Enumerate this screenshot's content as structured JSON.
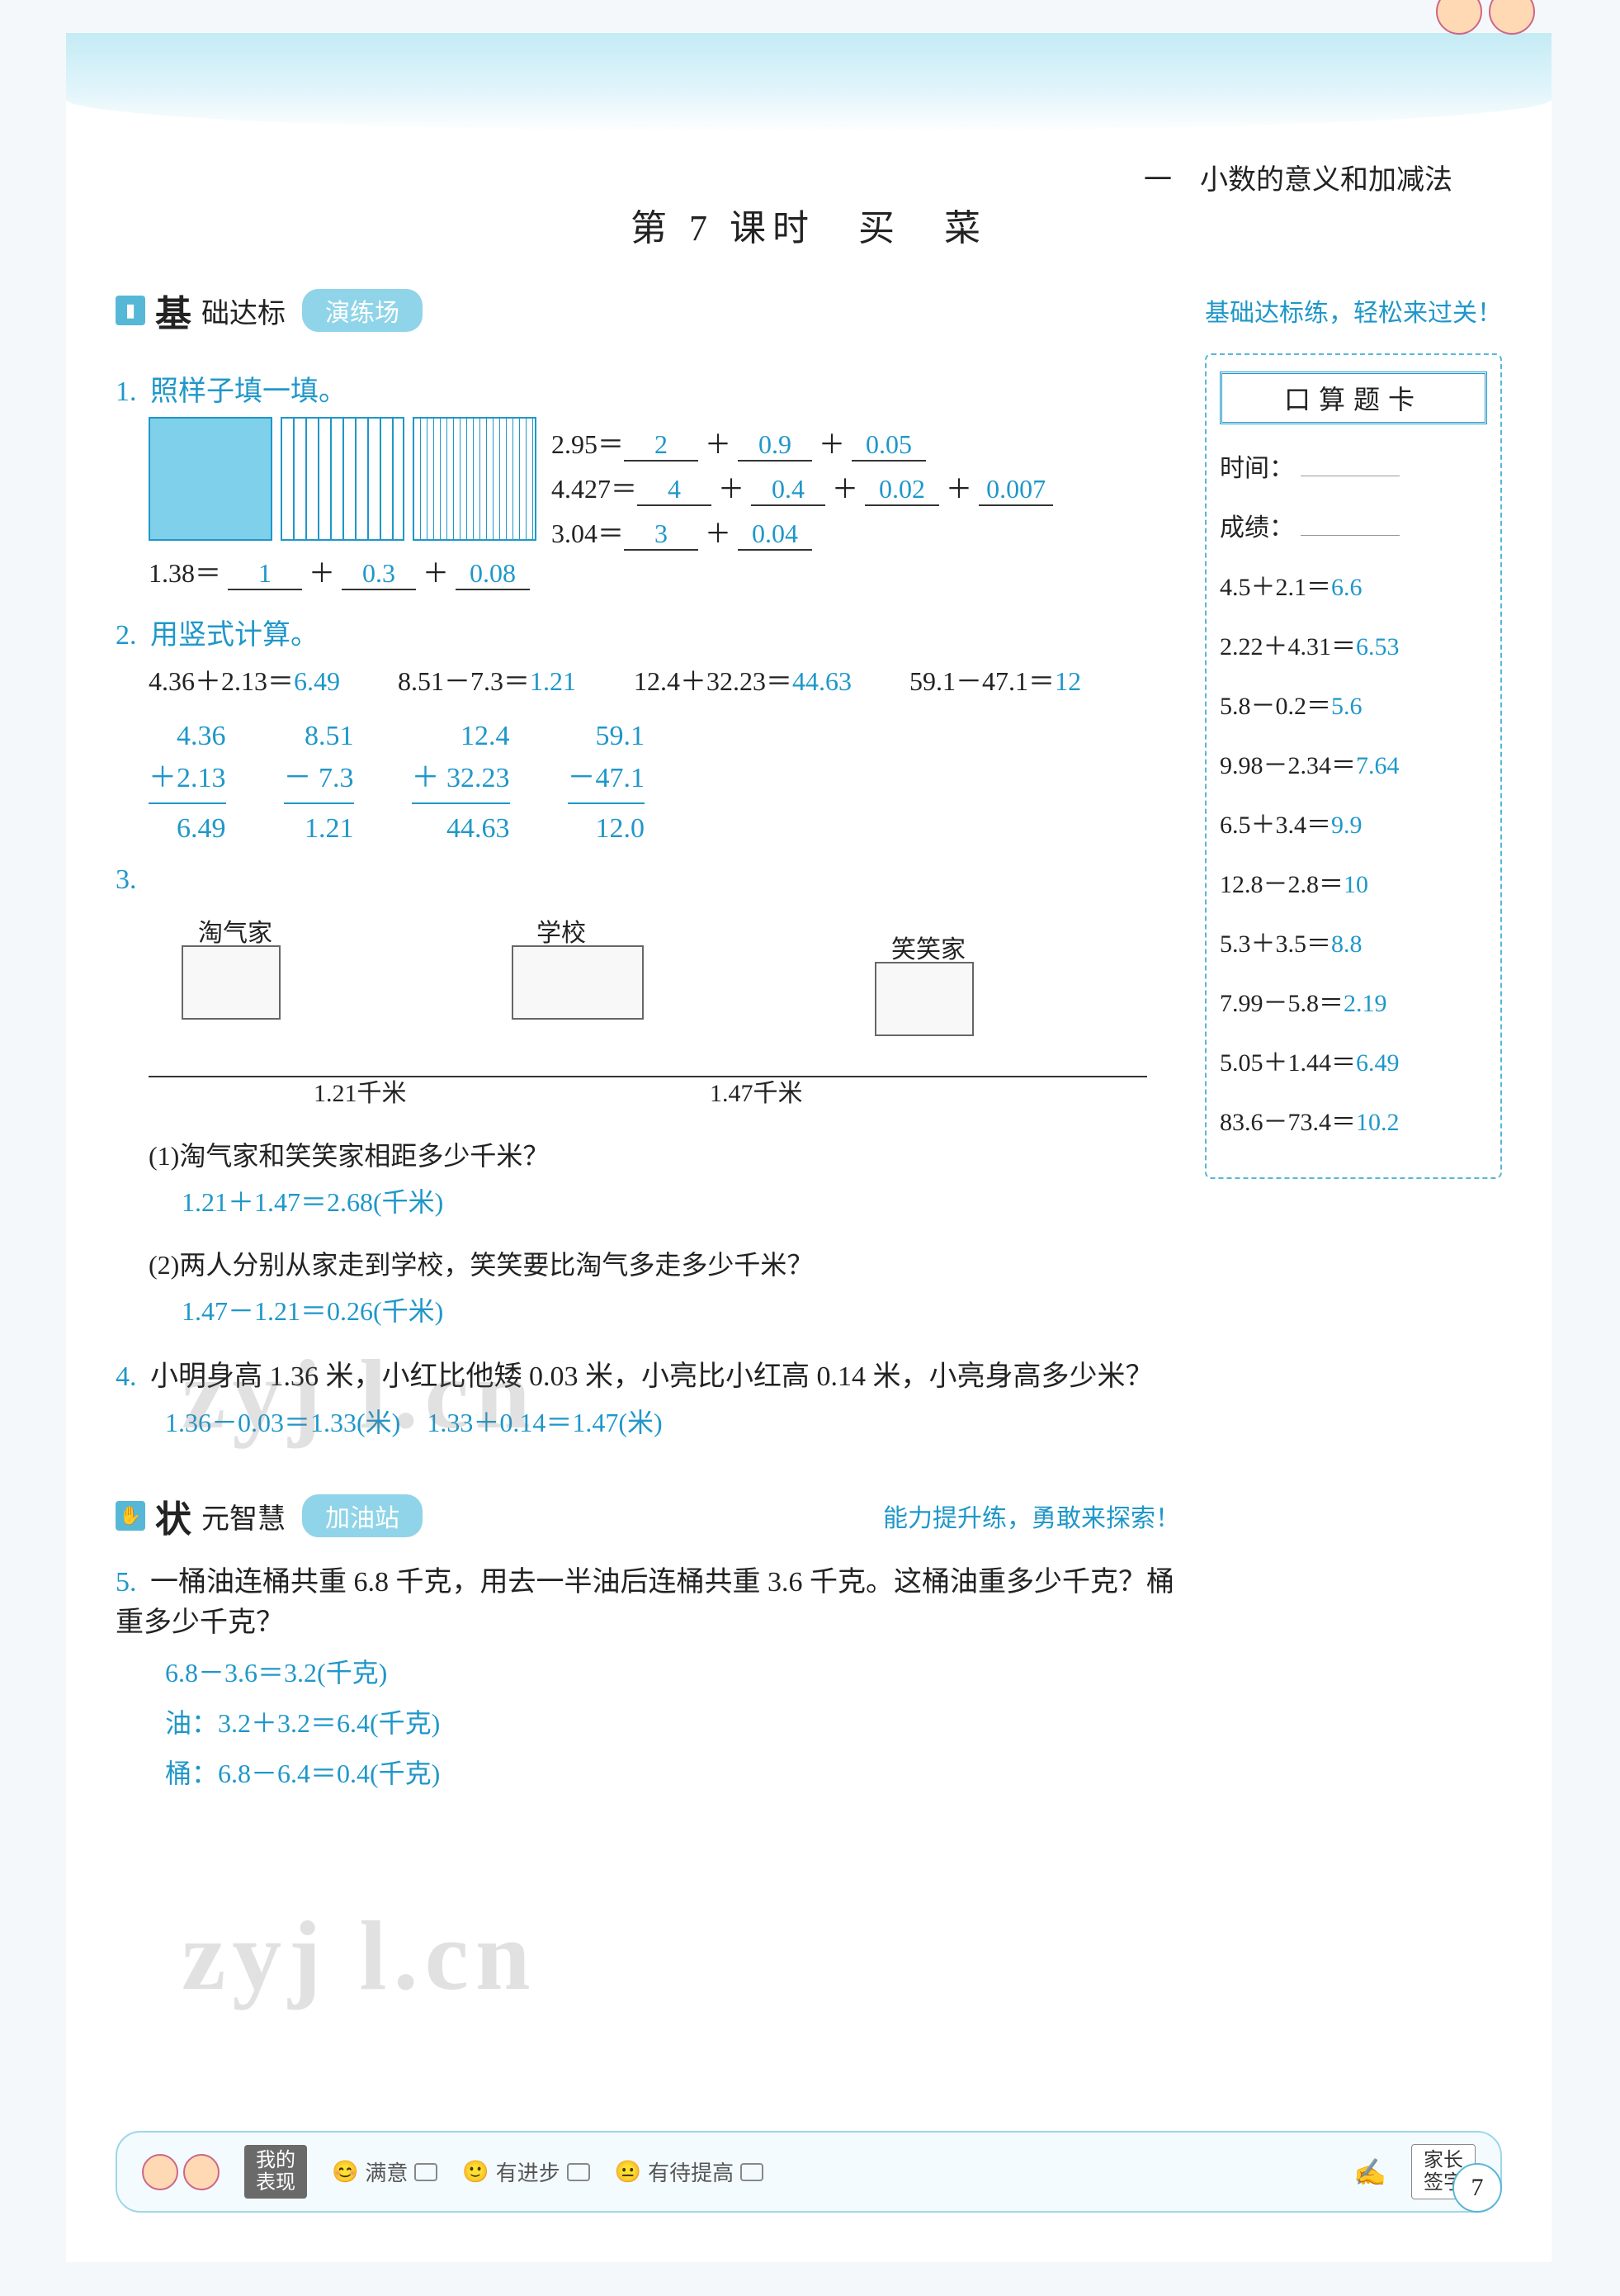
{
  "chapter": "一　小数的意义和加减法",
  "lesson_title": "第 7 课时　买　菜",
  "section1": {
    "icon": "▮",
    "title_a": "基",
    "title_b": "础达标",
    "pill": "演练场",
    "subtitle": "基础达标练，轻松来过关！"
  },
  "q1": {
    "num": "1.",
    "text": "照样子填一填。",
    "line_example": {
      "lhs": "1.38＝",
      "a": "1",
      "plus1": "＋",
      "b": "0.3",
      "plus2": "＋",
      "c": "0.08"
    },
    "right_lines": [
      {
        "lhs": "2.95＝",
        "parts": [
          "2",
          "0.9",
          "0.05"
        ],
        "ops": [
          "＋",
          "＋"
        ]
      },
      {
        "lhs": "4.427＝",
        "parts": [
          "4",
          "0.4",
          "0.02",
          "0.007"
        ],
        "ops": [
          "＋",
          "＋",
          "＋"
        ]
      },
      {
        "lhs": "3.04＝",
        "parts": [
          "3",
          "0.04"
        ],
        "ops": [
          "＋"
        ]
      }
    ]
  },
  "q2": {
    "num": "2.",
    "text": "用竖式计算。",
    "items": [
      {
        "expr": "4.36＋2.13＝",
        "ans": "6.49",
        "stack": [
          "4.36",
          "＋2.13",
          "6.49"
        ]
      },
      {
        "expr": "8.51－7.3＝",
        "ans": "1.21",
        "stack": [
          "8.51",
          "－  7.3",
          "1.21"
        ]
      },
      {
        "expr": "12.4＋32.23＝",
        "ans": "44.63",
        "stack": [
          "12.4",
          "＋ 32.23",
          "44.63"
        ]
      },
      {
        "expr": "59.1－47.1＝",
        "ans": "12",
        "stack": [
          "59.1",
          "－47.1",
          "12.0"
        ]
      }
    ]
  },
  "q3": {
    "num": "3.",
    "loc1": "淘气家",
    "loc2": "学校",
    "loc3": "笑笑家",
    "dist1": "1.21千米",
    "dist2": "1.47千米",
    "sub1": {
      "q": "(1)淘气家和笑笑家相距多少千米？",
      "a": "1.21＋1.47＝2.68(千米)"
    },
    "sub2": {
      "q": "(2)两人分别从家走到学校，笑笑要比淘气多走多少千米？",
      "a": "1.47－1.21＝0.26(千米)"
    }
  },
  "q4": {
    "num": "4.",
    "text": "小明身高 1.36 米，小红比他矮 0.03 米，小亮比小红高 0.14 米，小亮身高多少米？",
    "ans1": "1.36－0.03＝1.33(米)",
    "ans2": "1.33＋0.14＝1.47(米)"
  },
  "section2": {
    "icon": "✋",
    "title_a": "状",
    "title_b": "元智慧",
    "pill": "加油站",
    "subtitle": "能力提升练，勇敢来探索！"
  },
  "q5": {
    "num": "5.",
    "text": "一桶油连桶共重 6.8 千克，用去一半油后连桶共重 3.6 千克。这桶油重多少千克？桶重多少千克？",
    "a1": "6.8－3.6＝3.2(千克)",
    "a2": "油：3.2＋3.2＝6.4(千克)",
    "a3": "桶：6.8－6.4＝0.4(千克)"
  },
  "sidebar": {
    "header": "口算题卡",
    "time_label": "时间：",
    "score_label": "成绩：",
    "items": [
      {
        "expr": "4.5＋2.1＝",
        "ans": "6.6"
      },
      {
        "expr": "2.22＋4.31＝",
        "ans": "6.53"
      },
      {
        "expr": "5.8－0.2＝",
        "ans": "5.6"
      },
      {
        "expr": "9.98－2.34＝",
        "ans": "7.64"
      },
      {
        "expr": "6.5＋3.4＝",
        "ans": "9.9"
      },
      {
        "expr": "12.8－2.8＝",
        "ans": "10"
      },
      {
        "expr": "5.3＋3.5＝",
        "ans": "8.8"
      },
      {
        "expr": "7.99－5.8＝",
        "ans": "2.19"
      },
      {
        "expr": "5.05＋1.44＝",
        "ans": "6.49"
      },
      {
        "expr": "83.6－73.4＝",
        "ans": "10.2"
      }
    ]
  },
  "footer": {
    "badge": "我的\n表现",
    "c1": "满意",
    "c2": "有进步",
    "c3": "有待提高",
    "parent": "家长\n签字"
  },
  "page_number": "7",
  "watermark": "zyj l.cn",
  "colors": {
    "accent": "#1f97c9",
    "answer": "#1f97c9",
    "pill": "#8fd4e8",
    "dash": "#57b7d6"
  }
}
